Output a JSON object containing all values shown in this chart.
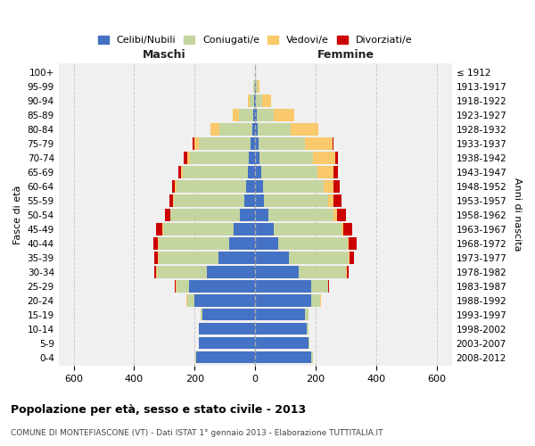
{
  "age_groups": [
    "0-4",
    "5-9",
    "10-14",
    "15-19",
    "20-24",
    "25-29",
    "30-34",
    "35-39",
    "40-44",
    "45-49",
    "50-54",
    "55-59",
    "60-64",
    "65-69",
    "70-74",
    "75-79",
    "80-84",
    "85-89",
    "90-94",
    "95-99",
    "100+"
  ],
  "birth_years": [
    "2008-2012",
    "2003-2007",
    "1998-2002",
    "1993-1997",
    "1988-1992",
    "1983-1987",
    "1978-1982",
    "1973-1977",
    "1968-1972",
    "1963-1967",
    "1958-1962",
    "1953-1957",
    "1948-1952",
    "1943-1947",
    "1938-1942",
    "1933-1937",
    "1928-1932",
    "1923-1927",
    "1918-1922",
    "1913-1917",
    "≤ 1912"
  ],
  "male": {
    "celibi": [
      195,
      185,
      185,
      175,
      200,
      220,
      160,
      120,
      85,
      70,
      50,
      35,
      30,
      25,
      20,
      15,
      8,
      5,
      3,
      2,
      0
    ],
    "coniugati": [
      2,
      2,
      2,
      5,
      25,
      40,
      165,
      200,
      235,
      235,
      230,
      235,
      230,
      215,
      195,
      170,
      110,
      50,
      15,
      5,
      0
    ],
    "vedovi": [
      0,
      0,
      0,
      0,
      2,
      2,
      2,
      2,
      2,
      2,
      2,
      3,
      5,
      5,
      10,
      15,
      30,
      20,
      5,
      0,
      0
    ],
    "divorziati": [
      0,
      0,
      0,
      0,
      2,
      3,
      8,
      12,
      15,
      20,
      15,
      12,
      10,
      10,
      10,
      8,
      0,
      0,
      0,
      0,
      0
    ]
  },
  "female": {
    "nubili": [
      185,
      175,
      170,
      165,
      185,
      185,
      145,
      110,
      75,
      60,
      45,
      30,
      25,
      20,
      15,
      10,
      8,
      5,
      3,
      2,
      0
    ],
    "coniugate": [
      5,
      5,
      5,
      10,
      30,
      55,
      155,
      200,
      230,
      225,
      215,
      210,
      200,
      185,
      175,
      155,
      110,
      55,
      20,
      5,
      0
    ],
    "vedove": [
      0,
      0,
      0,
      0,
      2,
      2,
      2,
      2,
      5,
      5,
      10,
      20,
      35,
      55,
      75,
      90,
      90,
      70,
      30,
      8,
      0
    ],
    "divorziate": [
      0,
      0,
      0,
      0,
      2,
      3,
      8,
      15,
      25,
      30,
      30,
      25,
      20,
      15,
      8,
      5,
      2,
      0,
      0,
      0,
      0
    ]
  },
  "colors": {
    "celibi": "#4472C4",
    "coniugati": "#C5D5A0",
    "vedovi": "#F9C96B",
    "divorziati": "#CC0000"
  },
  "xlim": 650,
  "title": "Popolazione per età, sesso e stato civile - 2013",
  "subtitle": "COMUNE DI MONTEFIASCONE (VT) - Dati ISTAT 1° gennaio 2013 - Elaborazione TUTTITALIA.IT",
  "ylabel": "Fasce di età",
  "ylabel_right": "Anni di nascita",
  "legend_labels": [
    "Celibi/Nubili",
    "Coniugati/e",
    "Vedovi/e",
    "Divorziati/e"
  ]
}
